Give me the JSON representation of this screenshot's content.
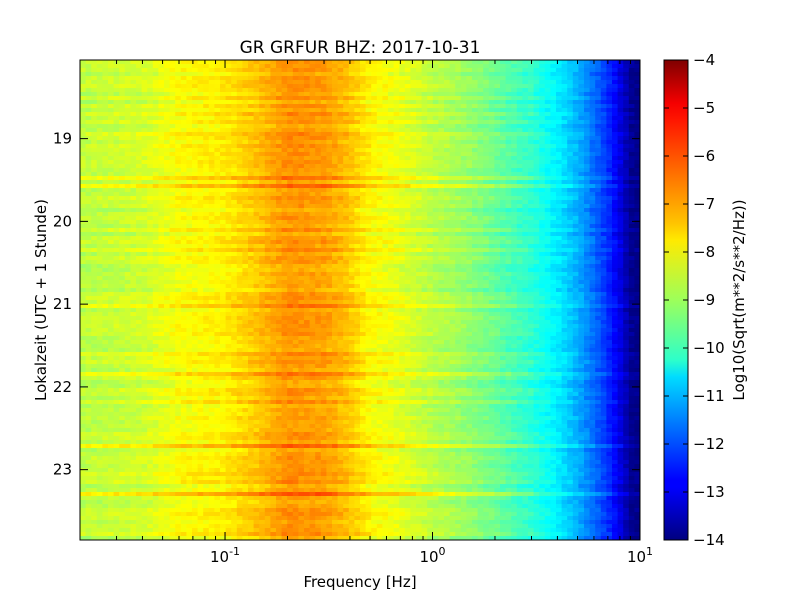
{
  "chart_data": {
    "type": "heatmap",
    "title": "GR GRFUR BHZ: 2017-10-31",
    "xlabel": "Frequency [Hz]",
    "ylabel": "Lokalzeit (UTC + 1 Stunde)",
    "x_scale": "log",
    "xlim": [
      0.02,
      10
    ],
    "ylim": [
      23.85,
      18.05
    ],
    "x_ticks": [
      {
        "base": "10",
        "exp": "-1",
        "value": 0.1
      },
      {
        "base": "10",
        "exp": "0",
        "value": 1
      },
      {
        "base": "10",
        "exp": "1",
        "value": 10
      }
    ],
    "y_ticks": [
      "19",
      "20",
      "21",
      "22",
      "23"
    ],
    "colorbar": {
      "label": "Log10(Sqrt(m**2/s**2/Hz))",
      "range": [
        -14,
        -4
      ],
      "ticks": [
        "-4",
        "-5",
        "-6",
        "-7",
        "-8",
        "-9",
        "-10",
        "-11",
        "-12",
        "-13",
        "-14"
      ],
      "colormap": "jet"
    },
    "spectrum_profile": {
      "frequencies_hz": [
        0.02,
        0.04,
        0.06,
        0.1,
        0.14,
        0.2,
        0.3,
        0.4,
        0.5,
        0.7,
        1.0,
        1.5,
        2.0,
        3.0,
        4.0,
        5.0,
        6.0,
        7.0,
        8.0,
        9.0,
        10.0
      ],
      "values": [
        -8.4,
        -8.2,
        -7.8,
        -7.6,
        -7.2,
        -6.7,
        -6.8,
        -7.2,
        -7.7,
        -8.0,
        -8.4,
        -8.8,
        -9.2,
        -9.8,
        -10.4,
        -11.0,
        -11.7,
        -12.3,
        -13.0,
        -13.8,
        -14.0
      ]
    }
  }
}
